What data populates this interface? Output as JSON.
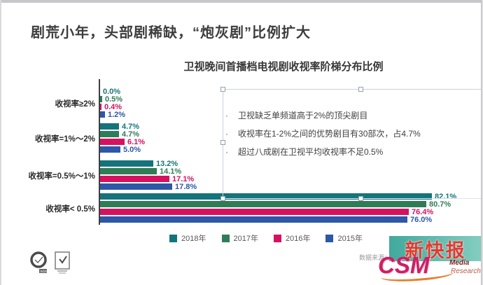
{
  "page": {
    "main_title": "剧荒小年，头部剧稀缺，“炮灰剧”比例扩大"
  },
  "chart_data": {
    "type": "bar",
    "orientation": "horizontal",
    "title": "卫视晚间首播档电视剧收视率阶梯分布比例",
    "categories": [
      "收视率≥2%",
      "收视率=1%～2%",
      "收视率=0.5%～1%",
      "收视率< 0.5%"
    ],
    "series": [
      {
        "name": "2018年",
        "color": "#14747b",
        "values": [
          0.0,
          4.7,
          13.2,
          82.1
        ]
      },
      {
        "name": "2017年",
        "color": "#2e7d56",
        "values": [
          0.5,
          4.7,
          14.1,
          80.7
        ]
      },
      {
        "name": "2016年",
        "color": "#d6115f",
        "values": [
          0.4,
          6.1,
          17.1,
          76.4
        ]
      },
      {
        "name": "2015年",
        "color": "#2d57a7",
        "values": [
          1.2,
          5.0,
          17.8,
          76.0
        ]
      }
    ],
    "value_suffix": "%",
    "xlim": [
      0,
      85
    ],
    "grid": false,
    "legend_position": "bottom",
    "value_labels_decimals": 1
  },
  "annotation": {
    "bullets": [
      "卫视缺乏单频道高于2%的顶尖剧目",
      "收视率在1-2%之间的优势剧目有30部次，占4.7%",
      "超过八成剧在卫视平均收视率不足0.5%"
    ]
  },
  "footer": {
    "source_text": "数据来源：CSM"
  },
  "logos": {
    "xkb": {
      "text": "新快报",
      "bg_color": "#41a99c",
      "text_color": "#e23a30"
    },
    "csm": {
      "text": "CSM",
      "sub1": "Media",
      "sub2": "Research",
      "color": "#ce1e63",
      "swoosh_color": "#e87c2e"
    }
  }
}
